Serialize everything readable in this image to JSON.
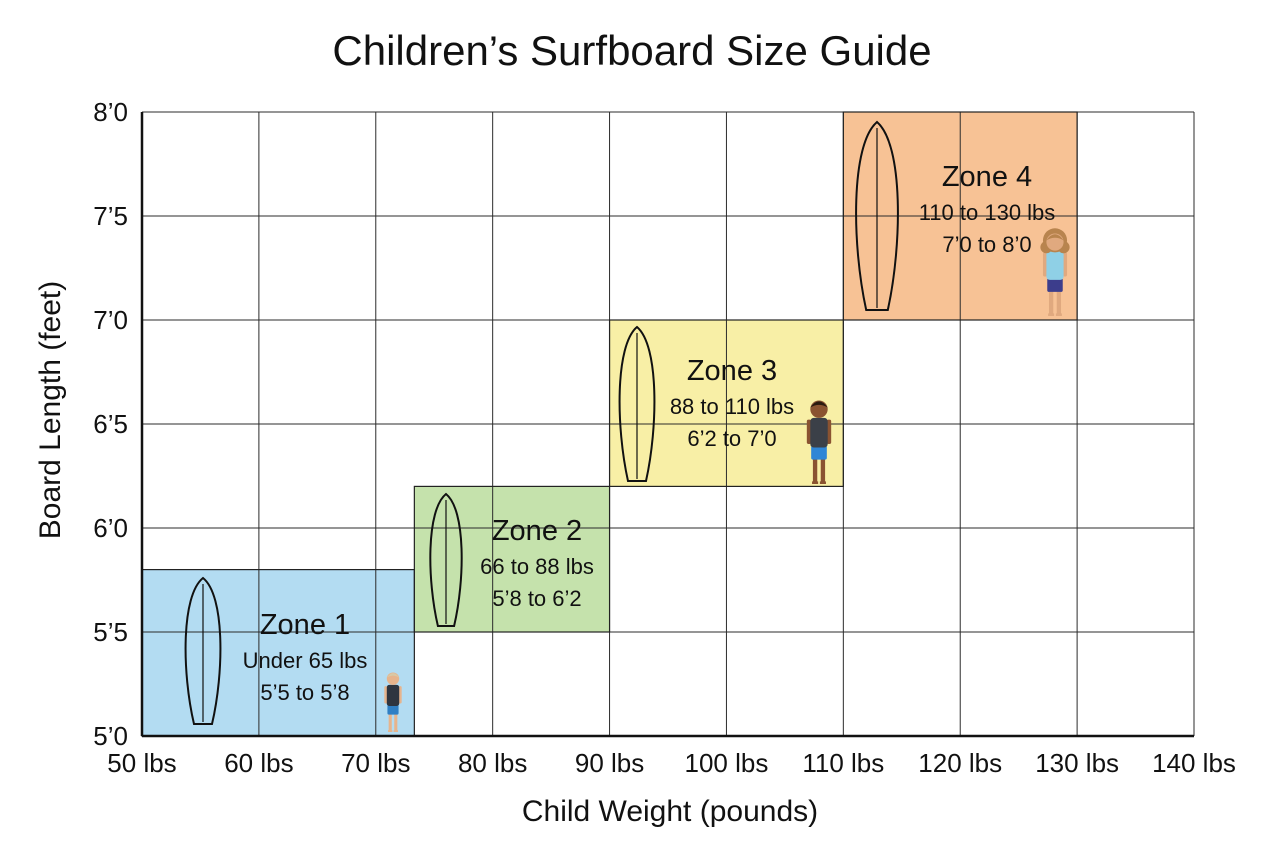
{
  "chart_data": {
    "type": "area",
    "title": "Children’s Surfboard Size Guide",
    "xlabel": "Child Weight (pounds)",
    "ylabel": "Board Length (feet)",
    "xlim": [
      50,
      140
    ],
    "ylim": [
      5.0,
      8.0
    ],
    "grid": true,
    "x_ticks": [
      {
        "value": 50,
        "label": "50 lbs"
      },
      {
        "value": 60,
        "label": "60 lbs"
      },
      {
        "value": 70,
        "label": "70 lbs"
      },
      {
        "value": 80,
        "label": "80 lbs"
      },
      {
        "value": 90,
        "label": "90 lbs"
      },
      {
        "value": 100,
        "label": "100 lbs"
      },
      {
        "value": 110,
        "label": "110 lbs"
      },
      {
        "value": 120,
        "label": "120 lbs"
      },
      {
        "value": 130,
        "label": "130 lbs"
      },
      {
        "value": 140,
        "label": "140 lbs"
      }
    ],
    "y_ticks": [
      {
        "value": 5.0,
        "label": "5’0"
      },
      {
        "value": 5.5,
        "label": "5’5"
      },
      {
        "value": 6.0,
        "label": "6’0"
      },
      {
        "value": 6.5,
        "label": "6’5"
      },
      {
        "value": 7.0,
        "label": "7’0"
      },
      {
        "value": 7.5,
        "label": "7’5"
      },
      {
        "value": 8.0,
        "label": "8’0"
      }
    ],
    "zones": [
      {
        "name": "Zone 1",
        "weight_text": "Under 65 lbs",
        "length_text": "5’5 to 5’8",
        "x": [
          50,
          73.3
        ],
        "y": [
          5.0,
          5.8
        ],
        "color": "#b3dcf2"
      },
      {
        "name": "Zone 2",
        "weight_text": "66 to 88 lbs",
        "length_text": "5’8 to 6’2",
        "x": [
          73.3,
          90
        ],
        "y": [
          5.5,
          6.2
        ],
        "color": "#c5e2ac"
      },
      {
        "name": "Zone 3",
        "weight_text": "88 to 110 lbs",
        "length_text": "6’2 to 7’0",
        "x": [
          90,
          110
        ],
        "y": [
          6.2,
          7.0
        ],
        "color": "#f8efa6"
      },
      {
        "name": "Zone 4",
        "weight_text": "110 to 130 lbs",
        "length_text": "7’0 to 8’0",
        "x": [
          110,
          130
        ],
        "y": [
          7.0,
          8.0
        ],
        "color": "#f7c295"
      }
    ]
  }
}
